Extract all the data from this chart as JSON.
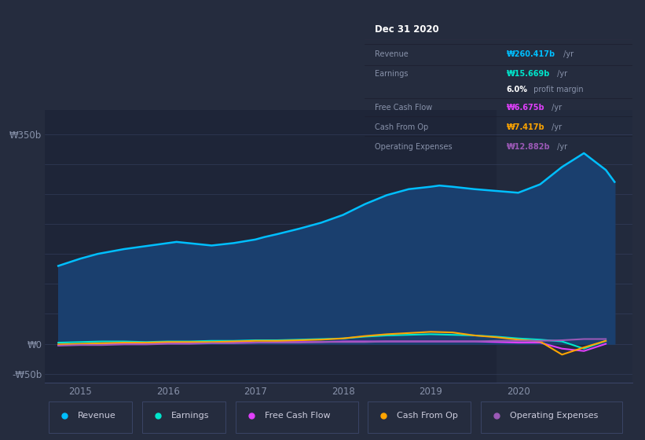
{
  "background_color": "#252c3e",
  "plot_bg_color": "#1e2538",
  "highlight_bg_color": "#222a3d",
  "ylabel_top": "₩350b",
  "ylabel_zero": "₩0",
  "ylabel_neg": "-₩50b",
  "x_ticks": [
    2015,
    2016,
    2017,
    2018,
    2019,
    2020
  ],
  "x_min": 2014.6,
  "x_max": 2021.3,
  "y_min": -65,
  "y_max": 390,
  "highlight_x_start": 2019.75,
  "highlight_x_end": 2021.3,
  "info_box": {
    "title": "Dec 31 2020",
    "rows": [
      {
        "label": "Revenue",
        "value": "₩260.417b",
        "unit": " /yr",
        "color": "#00bfff"
      },
      {
        "label": "Earnings",
        "value": "₩15.669b",
        "unit": " /yr",
        "color": "#00e5cc"
      },
      {
        "label": "",
        "value": "6.0%",
        "unit": " profit margin",
        "color": "#ffffff"
      },
      {
        "label": "Free Cash Flow",
        "value": "₩6.675b",
        "unit": " /yr",
        "color": "#e040fb"
      },
      {
        "label": "Cash From Op",
        "value": "₩7.417b",
        "unit": " /yr",
        "color": "#ffa500"
      },
      {
        "label": "Operating Expenses",
        "value": "₩12.882b",
        "unit": " /yr",
        "color": "#9b59b6"
      }
    ]
  },
  "legend": [
    {
      "label": "Revenue",
      "color": "#00bfff"
    },
    {
      "label": "Earnings",
      "color": "#00e5cc"
    },
    {
      "label": "Free Cash Flow",
      "color": "#e040fb"
    },
    {
      "label": "Cash From Op",
      "color": "#ffa500"
    },
    {
      "label": "Operating Expenses",
      "color": "#9b59b6"
    }
  ],
  "revenue": {
    "x": [
      2014.75,
      2015.0,
      2015.2,
      2015.5,
      2015.75,
      2016.0,
      2016.1,
      2016.3,
      2016.5,
      2016.75,
      2017.0,
      2017.1,
      2017.25,
      2017.5,
      2017.75,
      2018.0,
      2018.25,
      2018.5,
      2018.75,
      2019.0,
      2019.1,
      2019.25,
      2019.5,
      2019.75,
      2020.0,
      2020.25,
      2020.5,
      2020.75,
      2021.0,
      2021.1
    ],
    "y": [
      130,
      142,
      150,
      158,
      163,
      168,
      170,
      167,
      164,
      168,
      174,
      178,
      183,
      192,
      202,
      215,
      233,
      248,
      258,
      262,
      264,
      262,
      258,
      255,
      252,
      266,
      295,
      318,
      290,
      270
    ],
    "color": "#00bfff",
    "fill_color": "#1a3f6e",
    "fill_alpha": 1.0
  },
  "earnings": {
    "x": [
      2014.75,
      2015.0,
      2015.25,
      2015.5,
      2015.75,
      2016.0,
      2016.25,
      2016.5,
      2016.75,
      2017.0,
      2017.25,
      2017.5,
      2017.75,
      2018.0,
      2018.25,
      2018.5,
      2018.75,
      2019.0,
      2019.25,
      2019.5,
      2019.75,
      2020.0,
      2020.25,
      2020.5,
      2020.75,
      2021.0
    ],
    "y": [
      2,
      3,
      4,
      4,
      3,
      4,
      4,
      5,
      5,
      6,
      6,
      7,
      8,
      9,
      12,
      14,
      15,
      16,
      15,
      14,
      12,
      9,
      7,
      4,
      -8,
      5
    ],
    "color": "#00e5cc"
  },
  "free_cash_flow": {
    "x": [
      2014.75,
      2015.0,
      2015.25,
      2015.5,
      2015.75,
      2016.0,
      2016.25,
      2016.5,
      2016.75,
      2017.0,
      2017.25,
      2017.5,
      2017.75,
      2018.0,
      2018.25,
      2018.5,
      2018.75,
      2019.0,
      2019.25,
      2019.5,
      2019.75,
      2020.0,
      2020.25,
      2020.5,
      2020.75,
      2021.0
    ],
    "y": [
      -2,
      -1,
      0,
      0,
      1,
      1,
      1,
      2,
      2,
      2,
      3,
      3,
      3,
      4,
      4,
      4,
      4,
      4,
      4,
      4,
      3,
      2,
      2,
      -8,
      -12,
      0
    ],
    "color": "#e040fb"
  },
  "cash_from_op": {
    "x": [
      2014.75,
      2015.0,
      2015.25,
      2015.5,
      2015.75,
      2016.0,
      2016.25,
      2016.5,
      2016.75,
      2017.0,
      2017.25,
      2017.5,
      2017.75,
      2018.0,
      2018.25,
      2018.5,
      2018.75,
      2019.0,
      2019.25,
      2019.5,
      2019.75,
      2020.0,
      2020.25,
      2020.5,
      2020.75,
      2021.0
    ],
    "y": [
      -1,
      0,
      1,
      2,
      2,
      3,
      3,
      3,
      4,
      5,
      5,
      6,
      7,
      9,
      13,
      16,
      18,
      20,
      19,
      14,
      11,
      7,
      4,
      -18,
      -6,
      5
    ],
    "color": "#ffa500"
  },
  "operating_expenses": {
    "x": [
      2014.75,
      2015.0,
      2015.25,
      2015.5,
      2015.75,
      2016.0,
      2016.25,
      2016.5,
      2016.75,
      2017.0,
      2017.25,
      2017.5,
      2017.75,
      2018.0,
      2018.25,
      2018.5,
      2018.75,
      2019.0,
      2019.25,
      2019.5,
      2019.75,
      2020.0,
      2020.25,
      2020.5,
      2020.75,
      2021.0
    ],
    "y": [
      -3,
      -2,
      -2,
      -1,
      -1,
      0,
      0,
      1,
      1,
      2,
      2,
      2,
      3,
      3,
      3,
      4,
      4,
      4,
      4,
      4,
      5,
      5,
      5,
      6,
      8,
      8
    ],
    "color": "#9b59b6"
  }
}
